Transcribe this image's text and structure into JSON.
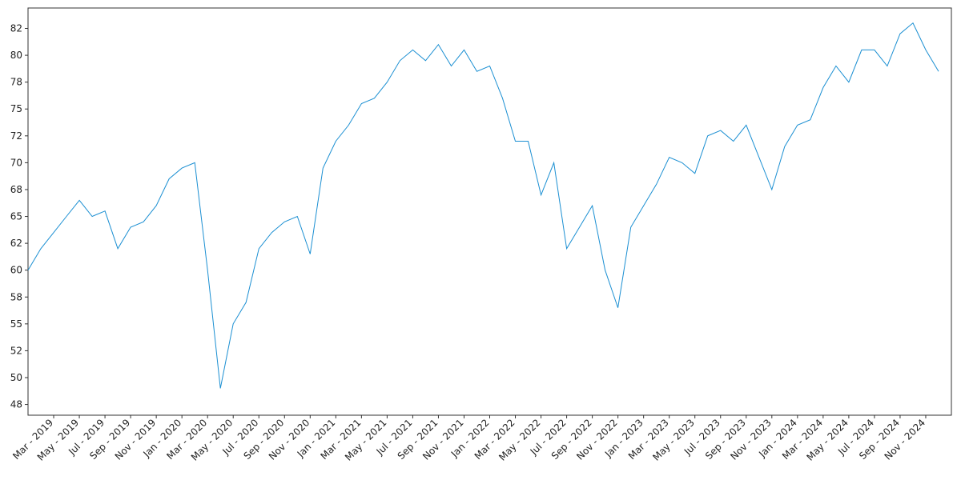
{
  "chart_data": {
    "type": "line",
    "x": [
      "2019-01",
      "2019-02",
      "2019-03",
      "2019-04",
      "2019-05",
      "2019-06",
      "2019-07",
      "2019-08",
      "2019-09",
      "2019-10",
      "2019-11",
      "2019-12",
      "2020-01",
      "2020-02",
      "2020-03",
      "2020-04",
      "2020-05",
      "2020-06",
      "2020-07",
      "2020-08",
      "2020-09",
      "2020-10",
      "2020-11",
      "2020-12",
      "2021-01",
      "2021-02",
      "2021-03",
      "2021-04",
      "2021-05",
      "2021-06",
      "2021-07",
      "2021-08",
      "2021-09",
      "2021-10",
      "2021-11",
      "2021-12",
      "2022-01",
      "2022-02",
      "2022-03",
      "2022-04",
      "2022-05",
      "2022-06",
      "2022-07",
      "2022-08",
      "2022-09",
      "2022-10",
      "2022-11",
      "2022-12",
      "2023-01",
      "2023-02",
      "2023-03",
      "2023-04",
      "2023-05",
      "2023-06",
      "2023-07",
      "2023-08",
      "2023-09",
      "2023-10",
      "2023-11",
      "2023-12",
      "2024-01",
      "2024-02",
      "2024-03",
      "2024-04",
      "2024-05",
      "2024-06",
      "2024-07",
      "2024-08",
      "2024-09",
      "2024-10",
      "2024-11",
      "2024-12"
    ],
    "series": [
      {
        "color": "#1b8fd2",
        "values": [
          60,
          62,
          63.5,
          65,
          66.5,
          65,
          65.5,
          62,
          64,
          64.5,
          66,
          68.5,
          69.5,
          70,
          60,
          49,
          55,
          57,
          62,
          63.5,
          64.5,
          65,
          61.5,
          69.5,
          72,
          73.5,
          75.5,
          76,
          77.5,
          79.5,
          80.5,
          79.5,
          81,
          79,
          80.5,
          78.5,
          79,
          76,
          72,
          72,
          67,
          70,
          62,
          64,
          66,
          60,
          56.5,
          64,
          66,
          68,
          70.5,
          70,
          69,
          72.5,
          73,
          72,
          73.5,
          70.5,
          67.5,
          71.5,
          73.5,
          74,
          77,
          79,
          77.5,
          80.5,
          80.5,
          79,
          82,
          83,
          80.5,
          78.5
        ]
      }
    ],
    "xlim": [
      "2019-01",
      "2025-01"
    ],
    "xticks": [
      {
        "value": "2019-03",
        "label": "Mar - 2019"
      },
      {
        "value": "2019-05",
        "label": "May - 2019"
      },
      {
        "value": "2019-07",
        "label": "Jul - 2019"
      },
      {
        "value": "2019-09",
        "label": "Sep - 2019"
      },
      {
        "value": "2019-11",
        "label": "Nov - 2019"
      },
      {
        "value": "2020-01",
        "label": "Jan - 2020"
      },
      {
        "value": "2020-03",
        "label": "Mar - 2020"
      },
      {
        "value": "2020-05",
        "label": "May - 2020"
      },
      {
        "value": "2020-07",
        "label": "Jul - 2020"
      },
      {
        "value": "2020-09",
        "label": "Sep - 2020"
      },
      {
        "value": "2020-11",
        "label": "Nov - 2020"
      },
      {
        "value": "2021-01",
        "label": "Jan - 2021"
      },
      {
        "value": "2021-03",
        "label": "Mar - 2021"
      },
      {
        "value": "2021-05",
        "label": "May - 2021"
      },
      {
        "value": "2021-07",
        "label": "Jul - 2021"
      },
      {
        "value": "2021-09",
        "label": "Sep - 2021"
      },
      {
        "value": "2021-11",
        "label": "Nov - 2021"
      },
      {
        "value": "2022-01",
        "label": "Jan - 2022"
      },
      {
        "value": "2022-03",
        "label": "Mar - 2022"
      },
      {
        "value": "2022-05",
        "label": "May - 2022"
      },
      {
        "value": "2022-07",
        "label": "Jul - 2022"
      },
      {
        "value": "2022-09",
        "label": "Sep - 2022"
      },
      {
        "value": "2022-11",
        "label": "Nov - 2022"
      },
      {
        "value": "2023-01",
        "label": "Jan - 2023"
      },
      {
        "value": "2023-03",
        "label": "Mar - 2023"
      },
      {
        "value": "2023-05",
        "label": "May - 2023"
      },
      {
        "value": "2023-07",
        "label": "Jul - 2023"
      },
      {
        "value": "2023-09",
        "label": "Sep - 2023"
      },
      {
        "value": "2023-11",
        "label": "Nov - 2023"
      },
      {
        "value": "2024-01",
        "label": "Jan - 2024"
      },
      {
        "value": "2024-03",
        "label": "Mar - 2024"
      },
      {
        "value": "2024-05",
        "label": "May - 2024"
      },
      {
        "value": "2024-07",
        "label": "Jul - 2024"
      },
      {
        "value": "2024-09",
        "label": "Sep - 2024"
      },
      {
        "value": "2024-11",
        "label": "Nov - 2024"
      }
    ],
    "ylim": [
      46.5,
      84.4
    ],
    "yticks": [
      {
        "value": 47.5,
        "label": "48"
      },
      50,
      {
        "value": 52.5,
        "label": "52"
      },
      55,
      {
        "value": 57.5,
        "label": "58"
      },
      60,
      {
        "value": 62.5,
        "label": "62"
      },
      65,
      {
        "value": 67.5,
        "label": "68"
      },
      70,
      {
        "value": 72.5,
        "label": "72"
      },
      75,
      {
        "value": 77.5,
        "label": "78"
      },
      80,
      {
        "value": 82.5,
        "label": "82"
      }
    ],
    "grid": false
  }
}
